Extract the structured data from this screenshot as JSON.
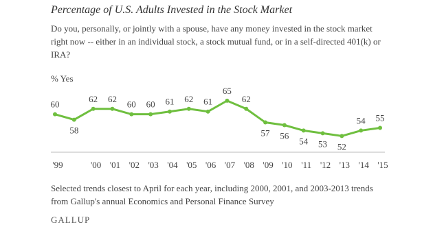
{
  "chart_data": {
    "type": "line",
    "title": "Percentage of U.S. Adults Invested in the Stock Market",
    "subtitle": "Do you, personally, or jointly with a spouse, have any money invested in the stock market right now -- either in an individual stock, a stock mutual fund, or in a self-directed 401(k) or IRA?",
    "y_label": "% Yes",
    "categories": [
      "'99",
      null,
      "'00",
      "'01",
      "'02",
      "'03",
      "'04",
      "'05",
      "'06",
      "'07",
      "'08",
      "'09",
      "'10",
      "'11",
      "'12",
      "'13",
      "'14",
      "'15"
    ],
    "series": [
      {
        "name": "% Yes",
        "color": "#6fbf3f",
        "values": [
          60,
          58,
          62,
          62,
          60,
          60,
          61,
          62,
          61,
          65,
          62,
          57,
          56,
          54,
          53,
          52,
          54,
          55
        ]
      }
    ],
    "ylim": [
      44,
      68
    ],
    "note": "Selected trends closest to April for each year, including 2000, 2001, and 2003-2013 trends from Gallup's annual Economics and Personal Finance Survey",
    "source": "GALLUP"
  }
}
